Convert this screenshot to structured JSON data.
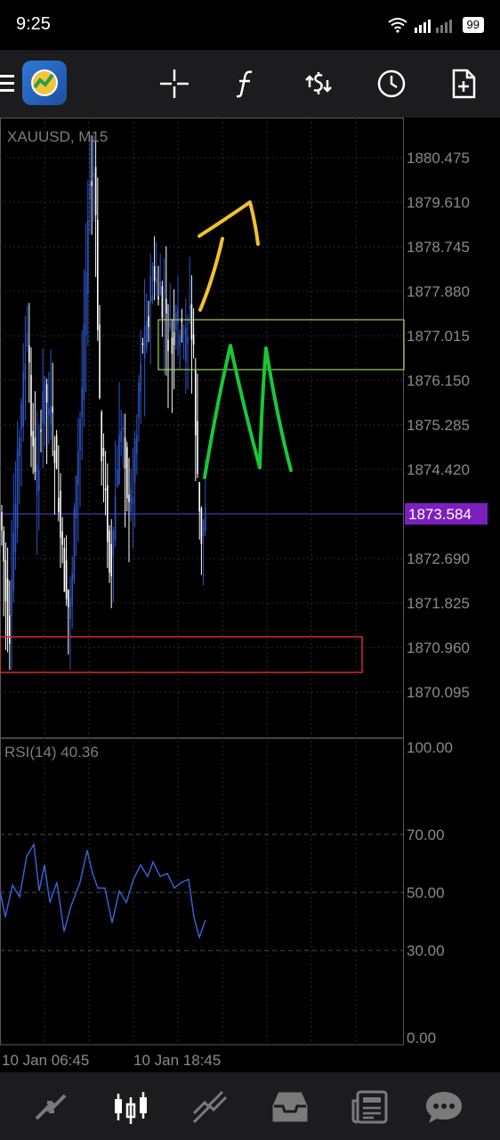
{
  "status_bar": {
    "time": "9:25",
    "battery": "99"
  },
  "toolbar": {
    "icons": [
      "menu-icon",
      "app-logo",
      "crosshair-icon",
      "function-icon",
      "currency-exchange-icon",
      "clock-icon",
      "new-order-icon"
    ]
  },
  "chart": {
    "symbol_label": "XAUUSD, M15",
    "price_ticks": [
      "1880.475",
      "1879.610",
      "1878.745",
      "1877.880",
      "1877.015",
      "1876.150",
      "1875.285",
      "1874.420",
      "1873.584",
      "1872.690",
      "1871.825",
      "1870.960",
      "1870.095"
    ],
    "current_price": "1873.584",
    "current_price_color": "#7b1fbf",
    "rsi_label": "RSI(14) 40.36",
    "rsi_ticks": [
      "100.00",
      "70.00",
      "50.00",
      "30.00",
      "0.00"
    ],
    "time_labels": [
      "10 Jan 06:45",
      "10 Jan 18:45"
    ],
    "bull_color": "#2f55c8",
    "bear_color": "#ffffff",
    "annotation_colors": {
      "arrow": "#f2c12e",
      "m_shape": "#19c739",
      "zone_box": "#9fd25a",
      "support_box": "#e0252f"
    }
  },
  "bottom_nav": {
    "items": [
      "quotes-icon",
      "chart-icon",
      "trade-icon",
      "history-icon",
      "news-icon",
      "messages-icon"
    ],
    "active": "chart-icon"
  }
}
